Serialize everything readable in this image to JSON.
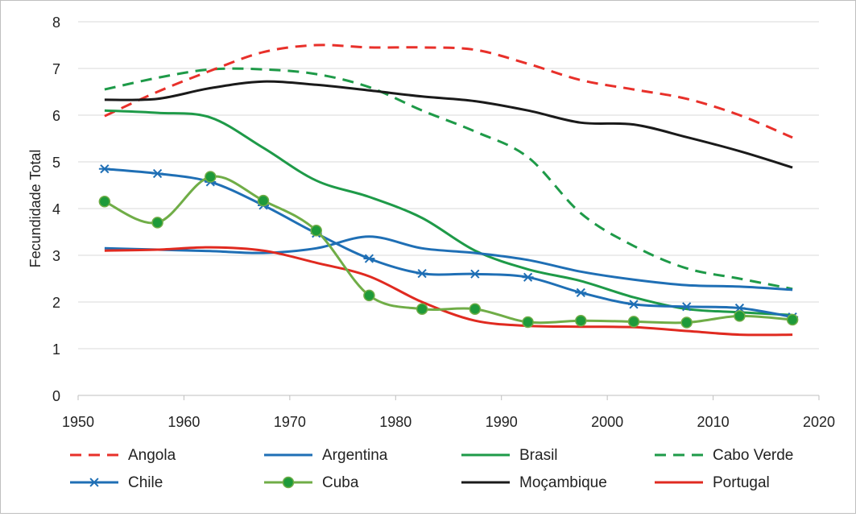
{
  "chart_data": {
    "type": "line",
    "title": "",
    "xlabel": "",
    "ylabel": "Fecundidade Total",
    "xlim": [
      1950,
      2020
    ],
    "ylim": [
      0,
      8
    ],
    "xticks": [
      "1950",
      "1960",
      "1970",
      "1980",
      "1990",
      "2000",
      "2010",
      "2020"
    ],
    "yticks": [
      "0",
      "1",
      "2",
      "3",
      "4",
      "5",
      "6",
      "7",
      "8"
    ],
    "grid": "horizontal",
    "legend_position": "bottom",
    "x": [
      1952.5,
      1957.5,
      1962.5,
      1967.5,
      1972.5,
      1977.5,
      1982.5,
      1987.5,
      1992.5,
      1997.5,
      2002.5,
      2007.5,
      2012.5,
      2017.5
    ],
    "series": [
      {
        "name": "Angola",
        "color": "#e8302a",
        "style": "dashed",
        "marker": "none",
        "values": [
          5.98,
          6.5,
          6.95,
          7.35,
          7.5,
          7.45,
          7.45,
          7.4,
          7.1,
          6.75,
          6.55,
          6.35,
          6.0,
          5.52
        ]
      },
      {
        "name": "Argentina",
        "color": "#1f6fb5",
        "style": "solid",
        "marker": "none",
        "values": [
          3.15,
          3.12,
          3.09,
          3.05,
          3.15,
          3.4,
          3.15,
          3.05,
          2.9,
          2.65,
          2.48,
          2.36,
          2.33,
          2.26
        ]
      },
      {
        "name": "Brasil",
        "color": "#1e9a48",
        "style": "solid",
        "marker": "none",
        "values": [
          6.1,
          6.05,
          5.95,
          5.3,
          4.6,
          4.25,
          3.8,
          3.1,
          2.7,
          2.45,
          2.1,
          1.85,
          1.78,
          1.72
        ]
      },
      {
        "name": "Cabo Verde",
        "color": "#1e9a48",
        "style": "dashed",
        "marker": "none",
        "values": [
          6.55,
          6.8,
          6.98,
          6.98,
          6.88,
          6.6,
          6.1,
          5.65,
          5.1,
          3.9,
          3.2,
          2.72,
          2.5,
          2.28
        ]
      },
      {
        "name": "Chile",
        "color": "#1f6fb5",
        "style": "solid",
        "marker": "asterisk",
        "values": [
          4.85,
          4.75,
          4.57,
          4.07,
          3.47,
          2.93,
          2.61,
          2.6,
          2.53,
          2.2,
          1.95,
          1.9,
          1.87,
          1.68
        ]
      },
      {
        "name": "Cuba",
        "color": "#70ad47",
        "style": "solid",
        "marker": "circle",
        "values": [
          4.15,
          3.7,
          4.68,
          4.17,
          3.53,
          2.14,
          1.85,
          1.85,
          1.57,
          1.6,
          1.58,
          1.56,
          1.7,
          1.62
        ]
      },
      {
        "name": "Moçambique",
        "color": "#1a1a1a",
        "style": "solid",
        "marker": "none",
        "values": [
          6.33,
          6.35,
          6.58,
          6.72,
          6.65,
          6.53,
          6.4,
          6.3,
          6.1,
          5.84,
          5.8,
          5.53,
          5.23,
          4.88
        ]
      },
      {
        "name": "Portugal",
        "color": "#e02a20",
        "style": "solid",
        "marker": "none",
        "values": [
          3.1,
          3.12,
          3.17,
          3.1,
          2.84,
          2.55,
          2.0,
          1.6,
          1.49,
          1.47,
          1.46,
          1.38,
          1.3,
          1.3
        ]
      }
    ]
  }
}
